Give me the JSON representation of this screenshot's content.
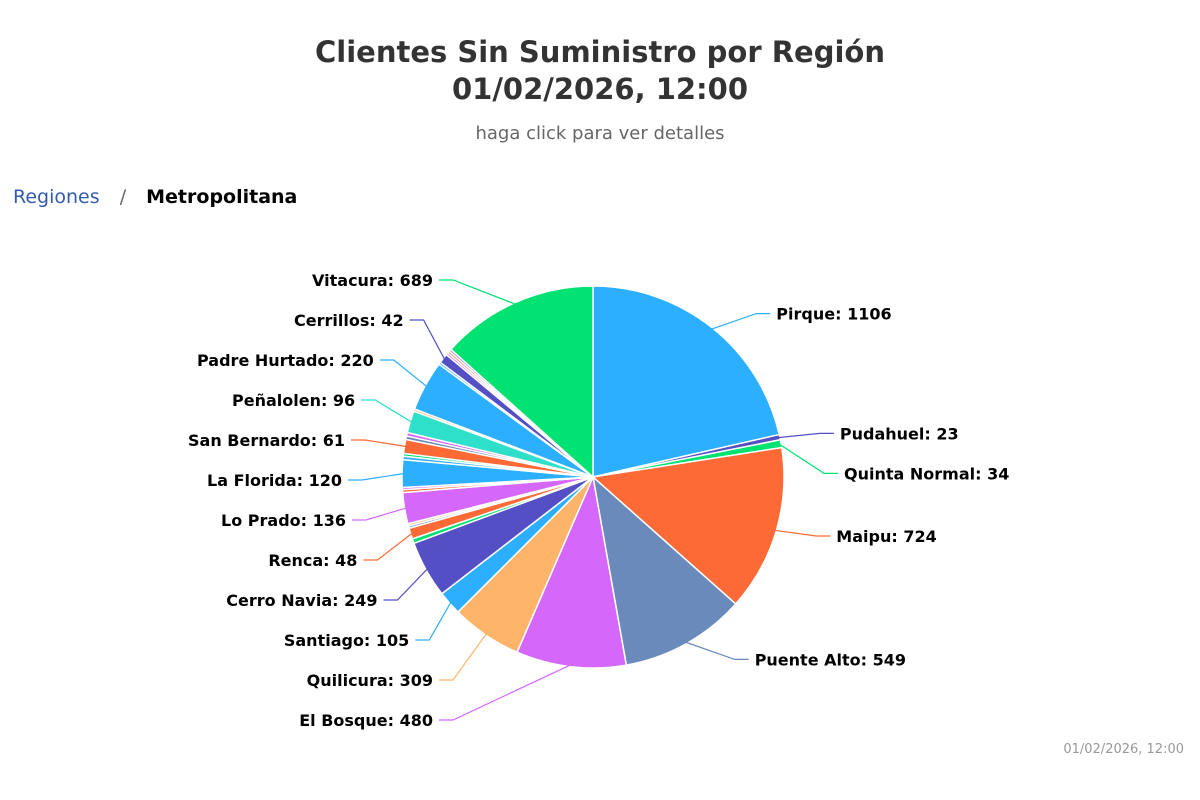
{
  "header": {
    "title_line1": "Clientes Sin Suministro por Región",
    "title_line2": "01/02/2026, 12:00",
    "subtitle": "haga click para ver detalles"
  },
  "breadcrumb": {
    "root": "Regiones",
    "separator": "/",
    "current": "Metropolitana"
  },
  "credits": "01/02/2026, 12:00",
  "chart_data": {
    "type": "pie",
    "slices": [
      {
        "name": "Pirque",
        "value": 1106,
        "color": "#2caffe"
      },
      {
        "name": "Pudahuel",
        "value": 23,
        "color": "#544fc5"
      },
      {
        "name": "Quinta Normal",
        "value": 34,
        "color": "#00e272"
      },
      {
        "name": "Maipu",
        "value": 724,
        "color": "#fe6a35"
      },
      {
        "name": "Puente Alto",
        "value": 549,
        "color": "#6b8abc"
      },
      {
        "name": "El Bosque",
        "value": 480,
        "color": "#d568fb"
      },
      {
        "name": "Quilicura",
        "value": 309,
        "color": "#feb56a"
      },
      {
        "name": "Santiago",
        "value": 105,
        "color": "#2caffe"
      },
      {
        "name": "Cerro Navia",
        "value": 249,
        "color": "#544fc5"
      },
      {
        "name": "",
        "value": 20,
        "color": "#00e272"
      },
      {
        "name": "Renca",
        "value": 48,
        "color": "#fe6a35"
      },
      {
        "name": "",
        "value": 10,
        "color": "#6b8abc"
      },
      {
        "name": "",
        "value": 10,
        "color": "#feb56a"
      },
      {
        "name": "Lo Prado",
        "value": 136,
        "color": "#d568fb"
      },
      {
        "name": "",
        "value": 12,
        "color": "#fe6a35"
      },
      {
        "name": "",
        "value": 10,
        "color": "#d568fb"
      },
      {
        "name": "La Florida",
        "value": 120,
        "color": "#2caffe"
      },
      {
        "name": "",
        "value": 15,
        "color": "#2caffe"
      },
      {
        "name": "",
        "value": 12,
        "color": "#00e272"
      },
      {
        "name": "San Bernardo",
        "value": 61,
        "color": "#fe6a35"
      },
      {
        "name": "",
        "value": 15,
        "color": "#6b8abc"
      },
      {
        "name": "",
        "value": 15,
        "color": "#d568fb"
      },
      {
        "name": "Peñalolen",
        "value": 96,
        "color": "#2ee0ca"
      },
      {
        "name": "",
        "value": 10,
        "color": "#feb56a"
      },
      {
        "name": "Padre Hurtado",
        "value": 220,
        "color": "#2caffe"
      },
      {
        "name": "",
        "value": 10,
        "color": "#2caffe"
      },
      {
        "name": "Cerrillos",
        "value": 42,
        "color": "#544fc5"
      },
      {
        "name": "",
        "value": 10,
        "color": "#d568fb"
      },
      {
        "name": "",
        "value": 10,
        "color": "#fe6a35"
      },
      {
        "name": "",
        "value": 10,
        "color": "#6b8abc"
      },
      {
        "name": "Vitacura",
        "value": 689,
        "color": "#00e272"
      }
    ]
  }
}
